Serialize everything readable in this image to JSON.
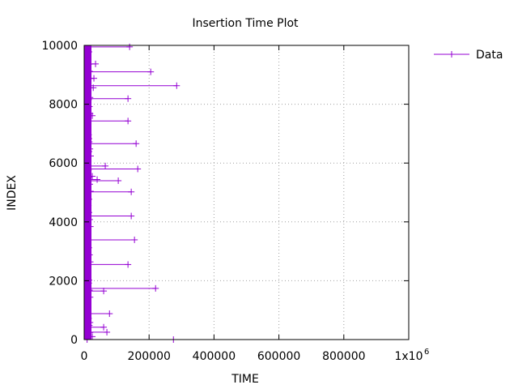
{
  "chart_data": {
    "type": "line",
    "title": "Insertion Time Plot",
    "xlabel": "TIME",
    "ylabel": "INDEX",
    "xlim": [
      0,
      1000000
    ],
    "ylim": [
      0,
      10000
    ],
    "x_ticks": [
      0,
      200000,
      400000,
      600000,
      800000,
      1000000
    ],
    "x_tick_labels": [
      "0",
      "200000",
      "400000",
      "600000",
      "800000",
      "1x10"
    ],
    "x_tick_exponent": "6",
    "y_ticks": [
      0,
      2000,
      4000,
      6000,
      8000,
      10000
    ],
    "y_tick_labels": [
      "0",
      "2000",
      "4000",
      "6000",
      "8000",
      "10000"
    ],
    "grid": true,
    "legend": "top-right",
    "series": [
      {
        "name": "Data",
        "color": "#9400d3",
        "spikes": [
          {
            "index": 9950,
            "time": 140000
          },
          {
            "index": 9780,
            "time": 15000
          },
          {
            "index": 9370,
            "time": 35000
          },
          {
            "index": 9100,
            "time": 205000
          },
          {
            "index": 8880,
            "time": 30000
          },
          {
            "index": 8630,
            "time": 285000
          },
          {
            "index": 8560,
            "time": 28000
          },
          {
            "index": 8230,
            "time": 18000
          },
          {
            "index": 8190,
            "time": 135000
          },
          {
            "index": 7610,
            "time": 25000
          },
          {
            "index": 7430,
            "time": 135000
          },
          {
            "index": 7100,
            "time": 12000
          },
          {
            "index": 6830,
            "time": 15000
          },
          {
            "index": 6660,
            "time": 160000
          },
          {
            "index": 6390,
            "time": 15000
          },
          {
            "index": 5900,
            "time": 65000
          },
          {
            "index": 5800,
            "time": 165000
          },
          {
            "index": 5550,
            "time": 25000
          },
          {
            "index": 5440,
            "time": 40000
          },
          {
            "index": 5400,
            "time": 105000
          },
          {
            "index": 5020,
            "time": 145000
          },
          {
            "index": 4770,
            "time": 15000
          },
          {
            "index": 4330,
            "time": 12000
          },
          {
            "index": 4200,
            "time": 145000
          },
          {
            "index": 3390,
            "time": 155000
          },
          {
            "index": 3060,
            "time": 12000
          },
          {
            "index": 2550,
            "time": 135000
          },
          {
            "index": 2020,
            "time": 15000
          },
          {
            "index": 1740,
            "time": 220000
          },
          {
            "index": 1650,
            "time": 60000
          },
          {
            "index": 1310,
            "time": 12000
          },
          {
            "index": 880,
            "time": 78000
          },
          {
            "index": 580,
            "time": 18000
          },
          {
            "index": 420,
            "time": 60000
          },
          {
            "index": 250,
            "time": 70000
          },
          {
            "index": 100,
            "time": 25000
          },
          {
            "index": 0,
            "time": 275000
          }
        ]
      }
    ]
  }
}
